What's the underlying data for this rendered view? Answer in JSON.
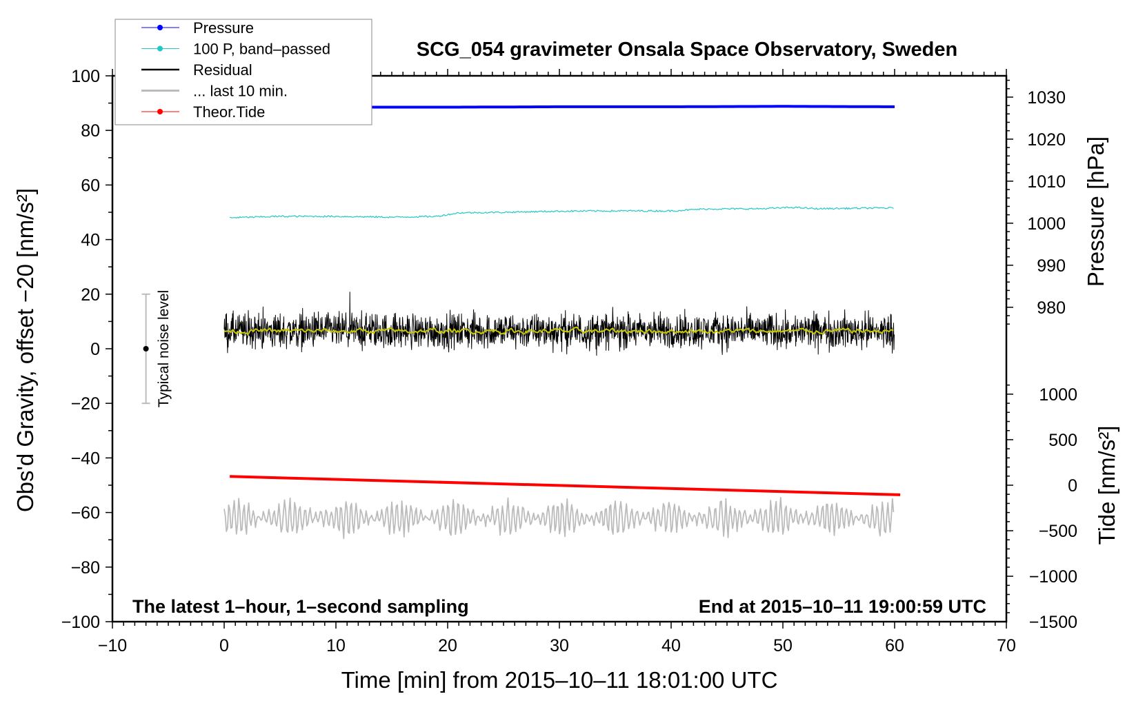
{
  "chart_data": {
    "type": "line",
    "title": "SCG_054 gravimeter Onsala Space Observatory, Sweden",
    "xlabel": "Time [min] from 2015–10–11 18:01:00 UTC",
    "ylabel_left": "Obs'd Gravity, offset −20 [nm/s²]",
    "ylabel_right_pressure": "Pressure [hPa]",
    "ylabel_right_tide": "Tide [nm/s²]",
    "annotation_left": "The latest 1–hour, 1–second sampling",
    "annotation_right": "End at 2015–10–11 19:00:59 UTC",
    "noise_label": "Typical noise level",
    "xlim": [
      -10,
      70
    ],
    "ylim": [
      -100,
      100
    ],
    "x_ticks": [
      "−10",
      "0",
      "10",
      "20",
      "30",
      "40",
      "50",
      "60",
      "70"
    ],
    "x_tick_values": [
      -10,
      0,
      10,
      20,
      30,
      40,
      50,
      60,
      70
    ],
    "y_ticks": [
      "100",
      "80",
      "60",
      "40",
      "20",
      "0",
      "−20",
      "−40",
      "−60",
      "−80",
      "−100"
    ],
    "y_tick_values": [
      100,
      80,
      60,
      40,
      20,
      0,
      -20,
      -40,
      -60,
      -80,
      -100
    ],
    "pressure_ticks": [
      "1030",
      "1020",
      "1010",
      "1000",
      "990",
      "980"
    ],
    "pressure_tick_values": [
      1030,
      1020,
      1010,
      1000,
      990,
      980
    ],
    "tide_ticks": [
      "1000",
      "500",
      "0",
      "−500",
      "−1000",
      "−1500"
    ],
    "tide_tick_values": [
      1000,
      500,
      0,
      -500,
      -1000,
      -1500
    ],
    "legend": [
      {
        "label": "Pressure",
        "color": "#0000ff",
        "marker": true
      },
      {
        "label": "100 P, band–passed",
        "color": "#20c8c8",
        "marker": true
      },
      {
        "label": "Residual",
        "color": "#000000",
        "marker": false
      },
      {
        "label": "... last 10 min.",
        "color": "#bbbbbb",
        "marker": false
      },
      {
        "label": "Theor.Tide",
        "color": "#ff0000",
        "marker": true
      }
    ],
    "legend_position": "top-left",
    "series": {
      "pressure_hPa": {
        "x": [
          0.5,
          10,
          20,
          30,
          40,
          50,
          60
        ],
        "y": [
          1027.6,
          1027.6,
          1027.6,
          1027.7,
          1027.7,
          1027.8,
          1027.7
        ]
      },
      "pressure_bandpassed_100P": {
        "x": [
          0.5,
          5,
          10,
          15,
          19,
          21,
          25,
          30,
          35,
          40,
          43,
          48,
          51,
          53,
          57,
          60
        ],
        "y": [
          48,
          48.5,
          48.5,
          48.2,
          48.5,
          49.8,
          50,
          50.4,
          50.5,
          50.5,
          51.2,
          51.3,
          51.8,
          51.3,
          51.5,
          51.6
        ]
      },
      "residual": {
        "x_range": [
          0,
          60
        ],
        "mean": 6.5,
        "noise_amplitude": 7
      },
      "residual_smoothed": {
        "x_range": [
          0,
          60
        ],
        "mean": 6.5
      },
      "last_10_min": {
        "x_range": [
          0,
          60
        ],
        "mean": -62,
        "amplitude": 6
      },
      "theor_tide_nm_s2": {
        "x": [
          0.5,
          60.5
        ],
        "y": [
          96,
          -105
        ]
      },
      "noise_level": {
        "x": -7,
        "range": [
          -20,
          20
        ],
        "center": 0
      }
    },
    "grid": false
  }
}
